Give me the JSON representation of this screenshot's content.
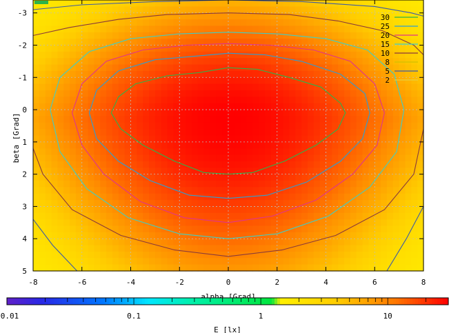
{
  "chart_data": {
    "type": "heatmap",
    "title": "",
    "xlabel": "alpha [Grad]",
    "ylabel": "beta [Grad]",
    "xlim": [
      -8,
      8
    ],
    "ylim": [
      -3.4,
      5
    ],
    "y_inverted": true,
    "x_ticks": [
      "-8",
      "-6",
      "-4",
      "-2",
      "0",
      "2",
      "4",
      "6",
      "8"
    ],
    "y_ticks": [
      "-3",
      "-2",
      "-1",
      "0",
      "1",
      "2",
      "3",
      "4",
      "5"
    ],
    "grid": true,
    "legend_position": "top-right",
    "contour_levels": [
      {
        "level": "30",
        "color": "#2db34a"
      },
      {
        "level": "25",
        "color": "#2a9fd6"
      },
      {
        "level": "20",
        "color": "#e0348c"
      },
      {
        "level": "15",
        "color": "#3ccfc8"
      },
      {
        "level": "10",
        "color": "#8a3a3a"
      },
      {
        "level": "8",
        "color": "#d0c000"
      },
      {
        "level": "5",
        "color": "#3a5aa8"
      },
      {
        "level": "2",
        "color": "#e8d040"
      }
    ],
    "contours": [
      {
        "level": "30",
        "points": [
          [
            -4.8,
            0.1
          ],
          [
            -4.5,
            -0.4
          ],
          [
            -3.8,
            -0.8
          ],
          [
            -2.5,
            -1.05
          ],
          [
            -1.2,
            -1.15
          ],
          [
            0,
            -1.3
          ],
          [
            1.2,
            -1.25
          ],
          [
            2.5,
            -1.0
          ],
          [
            3.8,
            -0.7
          ],
          [
            4.6,
            -0.2
          ],
          [
            4.8,
            0.1
          ],
          [
            4.5,
            0.6
          ],
          [
            3.6,
            1.1
          ],
          [
            2.3,
            1.6
          ],
          [
            1.0,
            1.95
          ],
          [
            0,
            2.0
          ],
          [
            -1.0,
            1.95
          ],
          [
            -2.2,
            1.6
          ],
          [
            -3.5,
            1.1
          ],
          [
            -4.4,
            0.6
          ],
          [
            -4.8,
            0.1
          ]
        ]
      },
      {
        "level": "25",
        "points": [
          [
            -5.7,
            0.1
          ],
          [
            -5.4,
            -0.6
          ],
          [
            -4.5,
            -1.2
          ],
          [
            -3.0,
            -1.55
          ],
          [
            -1.5,
            -1.65
          ],
          [
            0,
            -1.75
          ],
          [
            1.5,
            -1.7
          ],
          [
            3.0,
            -1.5
          ],
          [
            4.6,
            -1.1
          ],
          [
            5.6,
            -0.5
          ],
          [
            5.8,
            0.1
          ],
          [
            5.5,
            0.9
          ],
          [
            4.6,
            1.6
          ],
          [
            3.2,
            2.25
          ],
          [
            1.6,
            2.65
          ],
          [
            0,
            2.75
          ],
          [
            -1.6,
            2.65
          ],
          [
            -3.2,
            2.2
          ],
          [
            -4.5,
            1.6
          ],
          [
            -5.4,
            0.9
          ],
          [
            -5.7,
            0.1
          ]
        ]
      },
      {
        "level": "20",
        "points": [
          [
            -6.4,
            0.1
          ],
          [
            -6.0,
            -0.8
          ],
          [
            -5.0,
            -1.5
          ],
          [
            -3.5,
            -1.85
          ],
          [
            -1.7,
            -2.0
          ],
          [
            0,
            -2.05
          ],
          [
            1.7,
            -2.0
          ],
          [
            3.5,
            -1.85
          ],
          [
            5.0,
            -1.5
          ],
          [
            6.0,
            -0.8
          ],
          [
            6.4,
            0.1
          ],
          [
            6.1,
            1.1
          ],
          [
            5.1,
            2.0
          ],
          [
            3.6,
            2.8
          ],
          [
            1.8,
            3.3
          ],
          [
            0,
            3.5
          ],
          [
            -1.8,
            3.35
          ],
          [
            -3.6,
            2.85
          ],
          [
            -5.1,
            2.0
          ],
          [
            -6.0,
            1.1
          ],
          [
            -6.4,
            0.1
          ]
        ]
      },
      {
        "level": "15",
        "points": [
          [
            -7.3,
            0.0
          ],
          [
            -6.9,
            -1.0
          ],
          [
            -5.7,
            -1.8
          ],
          [
            -4.0,
            -2.2
          ],
          [
            -2.0,
            -2.35
          ],
          [
            0,
            -2.4
          ],
          [
            2.0,
            -2.35
          ],
          [
            4.0,
            -2.2
          ],
          [
            5.7,
            -1.85
          ],
          [
            6.8,
            -1.1
          ],
          [
            7.2,
            0.0
          ],
          [
            6.9,
            1.3
          ],
          [
            5.8,
            2.4
          ],
          [
            4.1,
            3.3
          ],
          [
            2.0,
            3.85
          ],
          [
            0,
            4.0
          ],
          [
            -2.0,
            3.85
          ],
          [
            -4.1,
            3.35
          ],
          [
            -5.8,
            2.45
          ],
          [
            -6.9,
            1.3
          ],
          [
            -7.3,
            0.0
          ]
        ]
      },
      {
        "level": "10",
        "points": [
          [
            -8,
            -2.3
          ],
          [
            -6.5,
            -2.55
          ],
          [
            -4.5,
            -2.8
          ],
          [
            -2.5,
            -2.95
          ],
          [
            0,
            -3.0
          ],
          [
            2.5,
            -2.95
          ],
          [
            4.5,
            -2.75
          ],
          [
            6.3,
            -2.45
          ],
          [
            7.6,
            -2.0
          ],
          [
            8,
            -1.7
          ],
          [
            8,
            0.6
          ],
          [
            7.6,
            2.0
          ],
          [
            6.4,
            3.1
          ],
          [
            4.4,
            3.9
          ],
          [
            2.2,
            4.35
          ],
          [
            0,
            4.55
          ],
          [
            -2.2,
            4.35
          ],
          [
            -4.4,
            3.9
          ],
          [
            -6.4,
            3.1
          ],
          [
            -7.6,
            2.0
          ],
          [
            -8,
            1.2
          ]
        ]
      },
      {
        "level": "5",
        "points": [
          [
            -8,
            -3.1
          ],
          [
            -6,
            -3.25
          ],
          [
            -3,
            -3.35
          ],
          [
            0,
            -3.4
          ],
          [
            3,
            -3.35
          ],
          [
            6,
            -3.2
          ],
          [
            7.5,
            -3.0
          ],
          [
            8,
            -2.9
          ]
        ]
      },
      {
        "level": "5",
        "points": [
          [
            -8,
            3.4
          ],
          [
            -7.2,
            4.2
          ],
          [
            -6.2,
            5.0
          ]
        ]
      },
      {
        "level": "5",
        "points": [
          [
            8,
            3.0
          ],
          [
            7.3,
            4.0
          ],
          [
            6.5,
            5.0
          ]
        ]
      }
    ],
    "colorbar": {
      "label": "E [lx]",
      "scale": "log",
      "range": [
        0.01,
        30
      ],
      "ticks": [
        "0.01",
        "0.1",
        "1",
        "10"
      ]
    },
    "field_model": {
      "peak": 30,
      "center": [
        0,
        0.3
      ],
      "floor": 1.2
    }
  }
}
